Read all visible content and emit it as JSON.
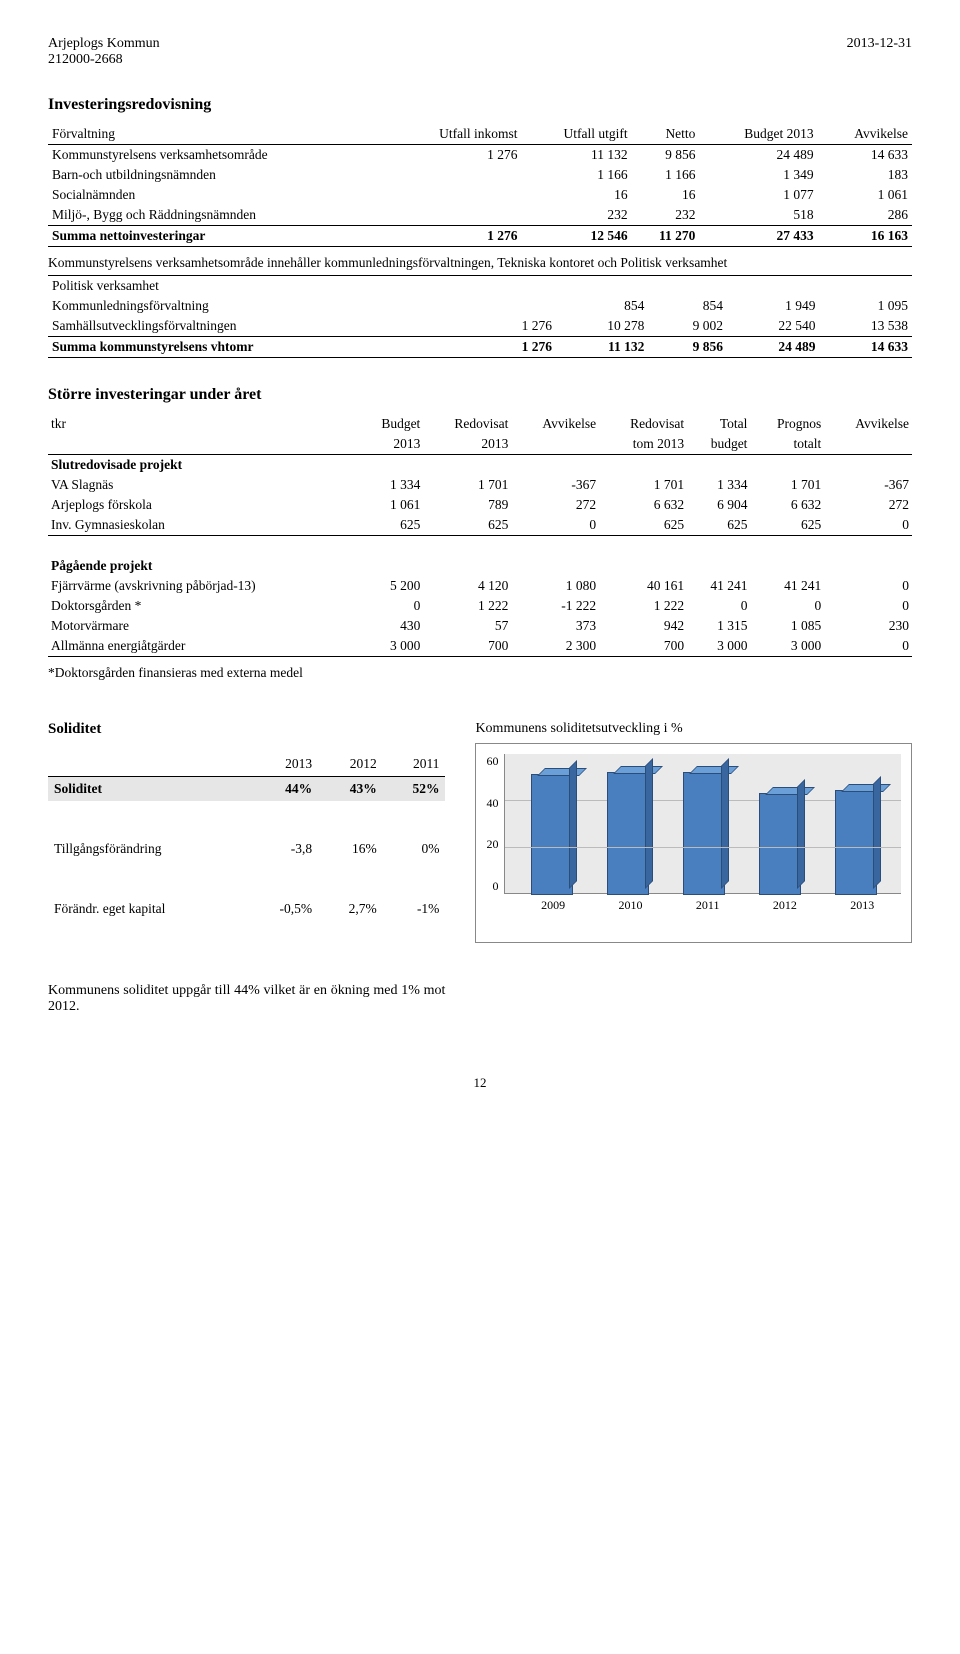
{
  "header": {
    "left1": "Arjeplogs Kommun",
    "left2": "212000-2668",
    "right": "2013-12-31"
  },
  "sec1": {
    "title": "Investeringsredovisning",
    "cols": [
      "Förvaltning",
      "Utfall inkomst",
      "Utfall utgift",
      "Netto",
      "Budget 2013",
      "Avvikelse"
    ],
    "rows": [
      [
        "Kommunstyrelsens verksamhetsområde",
        "1 276",
        "11 132",
        "9 856",
        "24 489",
        "14 633"
      ],
      [
        "Barn-och utbildningsnämnden",
        "",
        "1 166",
        "1 166",
        "1 349",
        "183"
      ],
      [
        "Socialnämnden",
        "",
        "16",
        "16",
        "1 077",
        "1 061"
      ],
      [
        "Miljö-, Bygg och Räddningsnämnden",
        "",
        "232",
        "232",
        "518",
        "286"
      ]
    ],
    "sum1": [
      "Summa nettoinvesteringar",
      "1 276",
      "12 546",
      "11 270",
      "27 433",
      "16 163"
    ],
    "note": "Kommunstyrelsens verksamhetsområde innehåller kommunledningsförvaltningen, Tekniska kontoret och Politisk verksamhet",
    "rows2_head": "Politisk verksamhet",
    "rows2": [
      [
        "Kommunledningsförvaltning",
        "",
        "854",
        "854",
        "1 949",
        "1 095"
      ],
      [
        "Samhällsutvecklingsförvaltningen",
        "1 276",
        "10 278",
        "9 002",
        "22 540",
        "13 538"
      ]
    ],
    "sum2": [
      "Summa kommunstyrelsens vhtomr",
      "1 276",
      "11 132",
      "9 856",
      "24 489",
      "14 633"
    ]
  },
  "sec2": {
    "title": "Större investeringar under året",
    "head1": [
      "tkr",
      "Budget",
      "Redovisat",
      "Avvikelse",
      "Redovisat",
      "Total",
      "Prognos",
      "Avvikelse"
    ],
    "head2": [
      "",
      "2013",
      "2013",
      "",
      "tom 2013",
      "budget",
      "totalt",
      ""
    ],
    "group1_title": "Slutredovisade projekt",
    "group1": [
      [
        "VA Slagnäs",
        "1 334",
        "1 701",
        "-367",
        "1 701",
        "1 334",
        "1 701",
        "-367"
      ],
      [
        "Arjeplogs förskola",
        "1 061",
        "789",
        "272",
        "6 632",
        "6 904",
        "6 632",
        "272"
      ],
      [
        "Inv. Gymnasieskolan",
        "625",
        "625",
        "0",
        "625",
        "625",
        "625",
        "0"
      ]
    ],
    "group2_title": "Pågående projekt",
    "group2": [
      [
        "Fjärrvärme (avskrivning påbörjad-13)",
        "5 200",
        "4 120",
        "1 080",
        "40 161",
        "41 241",
        "41 241",
        "0"
      ],
      [
        "Doktorsgården *",
        "0",
        "1 222",
        "-1 222",
        "1 222",
        "0",
        "0",
        "0"
      ],
      [
        "Motorvärmare",
        "430",
        "57",
        "373",
        "942",
        "1 315",
        "1 085",
        "230"
      ],
      [
        "Allmänna energiåtgärder",
        "3 000",
        "700",
        "2 300",
        "700",
        "3 000",
        "3 000",
        "0"
      ]
    ],
    "footnote": "*Doktorsgården finansieras med externa medel"
  },
  "sol": {
    "left_title": "Soliditet",
    "years": [
      "2013",
      "2012",
      "2011"
    ],
    "rows": [
      {
        "label": "Soliditet",
        "vals": [
          "44%",
          "43%",
          "52%"
        ],
        "hl": true
      },
      {
        "label": "Tillgångsförändring",
        "vals": [
          "-3,8",
          "16%",
          "0%"
        ],
        "hl": false
      },
      {
        "label": "Förändr. eget kapital",
        "vals": [
          "-0,5%",
          "2,7%",
          "-1%"
        ],
        "hl": false
      }
    ],
    "chart": {
      "title": "Kommunens soliditetsutveckling i %",
      "ymax": 60,
      "yticks": [
        60,
        40,
        20,
        0
      ],
      "bg": "#eaeaea",
      "grid": "#bbbbbb",
      "bar_front": "#4a7fbf",
      "bar_top": "#6a9fd8",
      "bar_side": "#3a66a0",
      "categories": [
        "2009",
        "2010",
        "2011",
        "2012",
        "2013"
      ],
      "values": [
        51,
        52,
        52,
        43,
        44
      ]
    }
  },
  "closing": "Kommunens soliditet uppgår till 44% vilket är en ökning med 1% mot 2012.",
  "page": "12"
}
